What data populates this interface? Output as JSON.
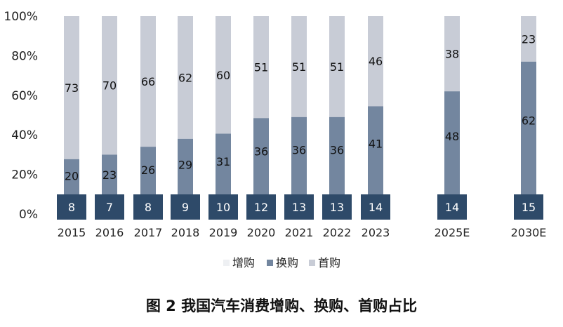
{
  "caption": "图 2  我国汽车消费增购、换购、首购占比",
  "chart_data": {
    "type": "bar",
    "stacked": true,
    "categories": [
      "2015",
      "2016",
      "2017",
      "2018",
      "2019",
      "2020",
      "2021",
      "2022",
      "2023",
      "2025E",
      "2030E"
    ],
    "y_ticks": [
      "0%",
      "20%",
      "40%",
      "60%",
      "80%",
      "100%"
    ],
    "ylim": [
      0,
      100
    ],
    "legend_position": "bottom",
    "series": [
      {
        "name": "增购",
        "values": [
          8,
          7,
          8,
          9,
          10,
          12,
          13,
          13,
          14,
          14,
          15
        ],
        "color": "#2e4a69"
      },
      {
        "name": "换购",
        "values": [
          20,
          23,
          26,
          29,
          31,
          36,
          36,
          36,
          41,
          48,
          62
        ],
        "color": "#73869f"
      },
      {
        "name": "首购",
        "values": [
          73,
          70,
          66,
          62,
          60,
          51,
          51,
          51,
          46,
          38,
          23
        ],
        "color": "#c8ccd6"
      }
    ],
    "legend_colors": [
      "#eef0f3",
      "#73869f",
      "#c8ccd6"
    ]
  }
}
